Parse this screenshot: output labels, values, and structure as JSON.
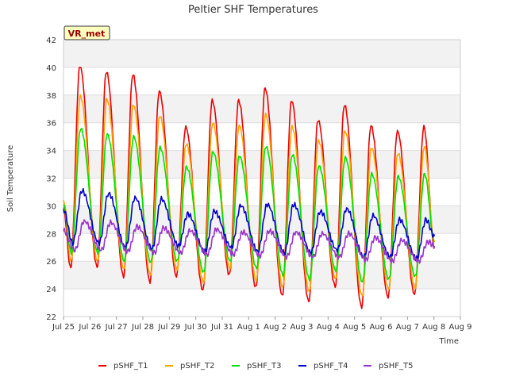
{
  "chart_data": {
    "type": "line",
    "title": "Peltier SHF Temperatures",
    "xlabel": "Time",
    "ylabel": "Soil Temperature",
    "annotation": "VR_met",
    "ylim": [
      22,
      42
    ],
    "xlim_days": [
      25,
      40
    ],
    "y_ticks": [
      "22",
      "24",
      "26",
      "28",
      "30",
      "32",
      "34",
      "36",
      "38",
      "40",
      "42"
    ],
    "x_ticks": [
      "Jul 25",
      "Jul 26",
      "Jul 27",
      "Jul 28",
      "Jul 29",
      "Jul 30",
      "Jul 31",
      "Aug 1",
      "Aug 2",
      "Aug 3",
      "Aug 4",
      "Aug 5",
      "Aug 6",
      "Aug 7",
      "Aug 8",
      "Aug 9"
    ],
    "grid": true,
    "legend_position": "bottom",
    "series": [
      {
        "name": "pSHF_T1",
        "color": "#ee0000",
        "peaks": [
          40.1,
          39.7,
          39.5,
          38.3,
          35.7,
          37.6,
          37.6,
          38.5,
          37.6,
          36.2,
          37.3,
          35.8,
          35.4,
          35.7
        ],
        "troughs": [
          25.5,
          25.6,
          24.9,
          24.5,
          24.9,
          23.9,
          25.0,
          24.1,
          23.5,
          23.1,
          24.2,
          22.7,
          23.4,
          23.6
        ]
      },
      {
        "name": "pSHF_T2",
        "color": "#ffa500",
        "peaks": [
          37.9,
          37.7,
          37.3,
          36.5,
          34.5,
          36.0,
          35.8,
          36.6,
          35.7,
          34.7,
          35.4,
          34.2,
          33.8,
          34.3
        ],
        "troughs": [
          26.0,
          26.0,
          25.4,
          25.0,
          25.4,
          24.5,
          25.5,
          24.6,
          24.1,
          23.8,
          24.7,
          23.5,
          24.0,
          24.1
        ]
      },
      {
        "name": "pSHF_T3",
        "color": "#00e000",
        "peaks": [
          35.6,
          35.2,
          35.0,
          34.2,
          32.8,
          33.9,
          33.6,
          34.3,
          33.7,
          32.9,
          33.5,
          32.3,
          32.1,
          32.3
        ],
        "troughs": [
          26.6,
          26.6,
          26.0,
          25.9,
          26.0,
          25.2,
          26.0,
          25.5,
          25.0,
          24.7,
          25.3,
          24.5,
          24.7,
          24.9
        ]
      },
      {
        "name": "pSHF_T4",
        "color": "#0000cc",
        "peaks": [
          31.1,
          30.9,
          30.6,
          30.5,
          29.4,
          29.6,
          30.0,
          30.1,
          30.1,
          29.6,
          29.8,
          29.3,
          29.0,
          29.0
        ],
        "troughs": [
          27.3,
          27.3,
          27.0,
          26.9,
          27.1,
          26.7,
          27.0,
          26.7,
          26.6,
          26.6,
          26.8,
          26.3,
          26.3,
          26.2
        ]
      },
      {
        "name": "pSHF_T5",
        "color": "#9933cc",
        "peaks": [
          28.9,
          28.8,
          28.5,
          28.4,
          28.2,
          28.3,
          28.1,
          28.2,
          28.1,
          28.0,
          28.0,
          27.7,
          27.5,
          27.4
        ],
        "troughs": [
          26.8,
          26.8,
          26.7,
          26.6,
          26.6,
          26.5,
          26.5,
          26.4,
          26.3,
          26.3,
          26.3,
          26.1,
          26.0,
          26.0
        ]
      }
    ]
  }
}
